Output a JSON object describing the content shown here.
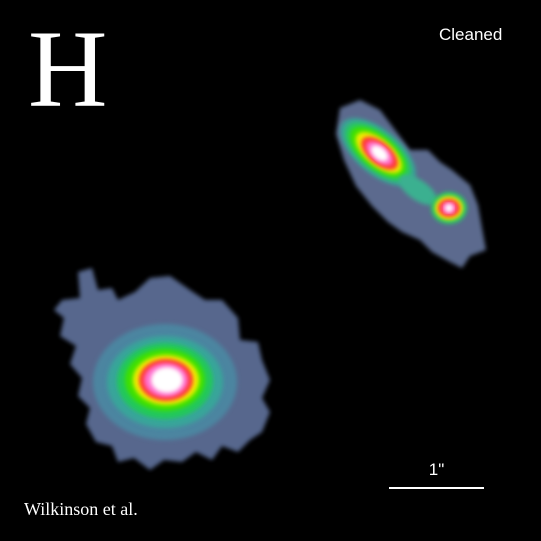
{
  "image": {
    "band_letter": "H",
    "processing_label": "Cleaned",
    "credit": "Wilkinson et al.",
    "scale_bar_label": "1\""
  },
  "colors": {
    "background": "#000000",
    "text": "#ffffff",
    "false_color_ramp": [
      "#5a6f9a",
      "#3f9a9a",
      "#2fbf6f",
      "#00e000",
      "#e8e800",
      "#ff3030",
      "#ff66cc",
      "#ffffff"
    ]
  },
  "objects": [
    {
      "name": "lower-left-galaxy",
      "description_icon": "diffuse-blob"
    },
    {
      "name": "upper-right-lensed-pair",
      "description_icon": "double-knot"
    }
  ]
}
